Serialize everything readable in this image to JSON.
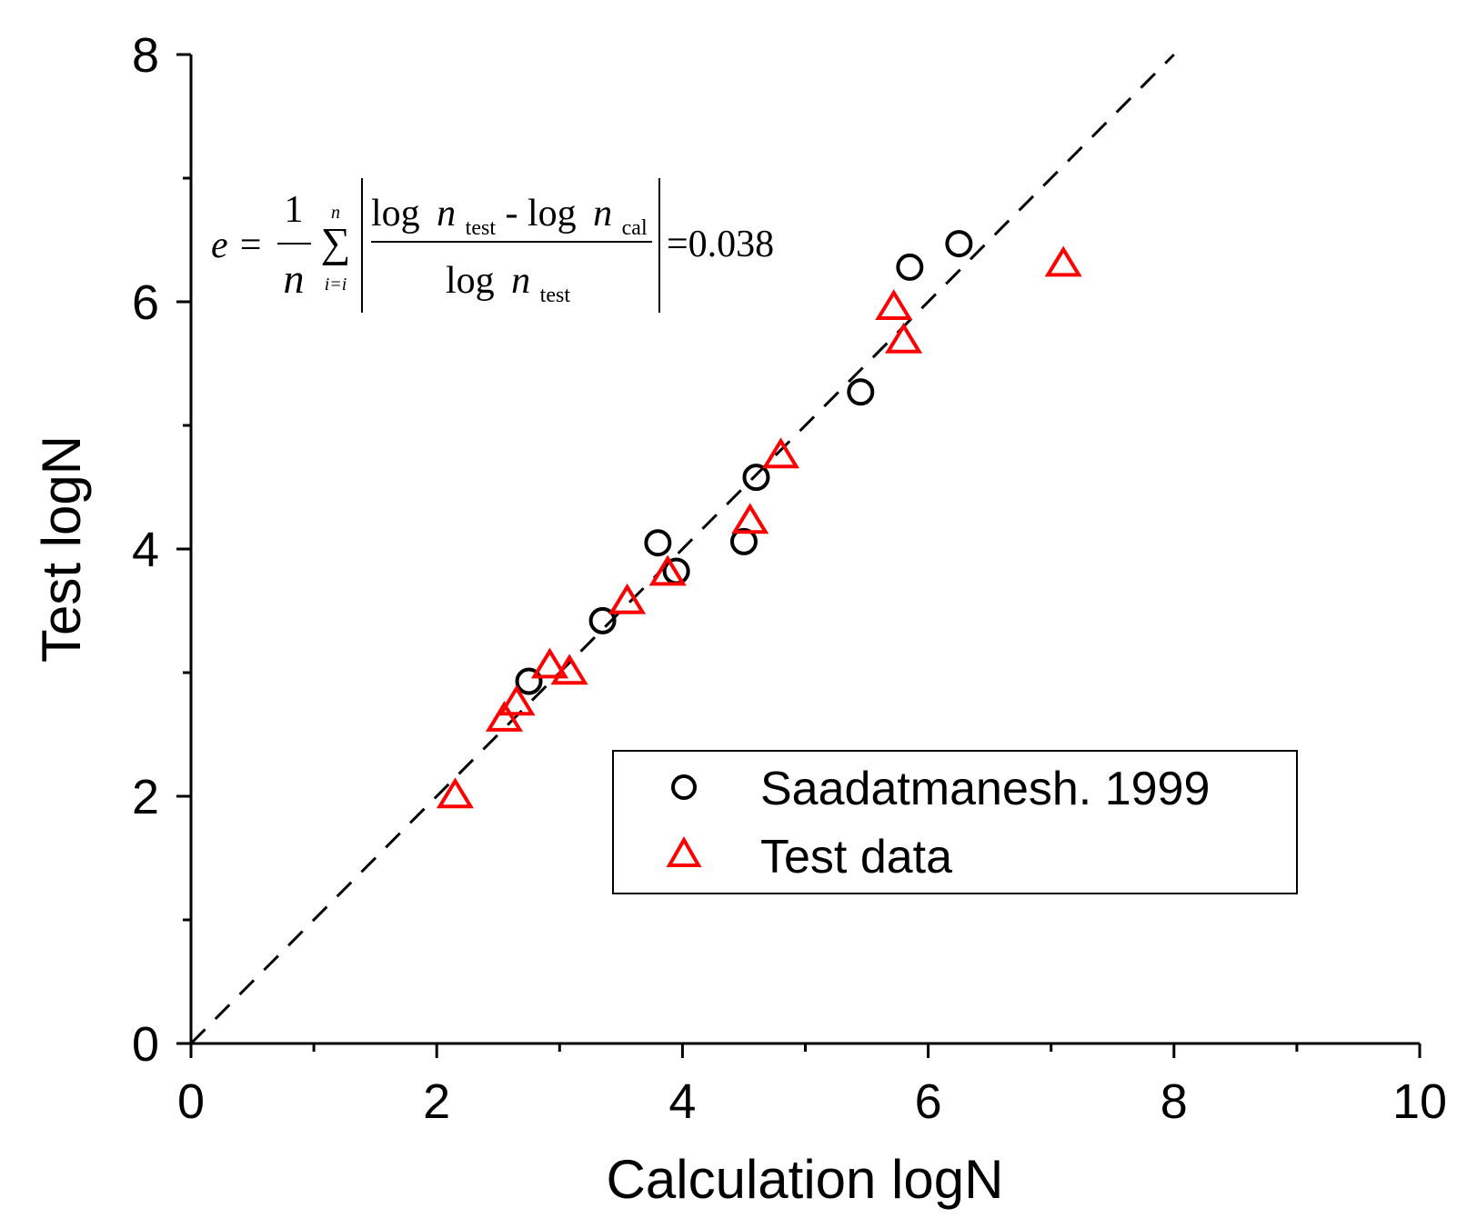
{
  "chart_data": {
    "type": "scatter",
    "title": "",
    "xlabel": "Calculation logN",
    "ylabel": "Test logN",
    "xlim": [
      0,
      10
    ],
    "ylim": [
      0,
      8
    ],
    "xticks": [
      "0",
      "2",
      "4",
      "6",
      "8",
      "10"
    ],
    "yticks": [
      "0",
      "2",
      "4",
      "6",
      "8"
    ],
    "reference_line": {
      "style": "dashed",
      "color": "#000000",
      "x": [
        0,
        8
      ],
      "y": [
        0,
        8
      ]
    },
    "series": [
      {
        "name": "Saadatmanesh. 1999",
        "marker": "circle",
        "color": "#000000",
        "points": [
          [
            2.75,
            2.93
          ],
          [
            3.35,
            3.42
          ],
          [
            3.8,
            4.05
          ],
          [
            3.95,
            3.82
          ],
          [
            4.5,
            4.06
          ],
          [
            4.6,
            4.58
          ],
          [
            5.45,
            5.27
          ],
          [
            5.85,
            6.28
          ],
          [
            6.25,
            6.47
          ]
        ]
      },
      {
        "name": "Test data",
        "marker": "triangle",
        "color": "#ff0000",
        "points": [
          [
            2.15,
            2.0
          ],
          [
            2.55,
            2.62
          ],
          [
            2.65,
            2.75
          ],
          [
            2.92,
            3.05
          ],
          [
            3.08,
            3.0
          ],
          [
            3.55,
            3.57
          ],
          [
            3.88,
            3.8
          ],
          [
            4.55,
            4.22
          ],
          [
            4.8,
            4.75
          ],
          [
            5.72,
            5.95
          ],
          [
            5.8,
            5.68
          ],
          [
            7.1,
            6.3
          ]
        ]
      }
    ],
    "legend_position": "bottom-right",
    "annotation": {
      "lhs": "e =",
      "frac_num": "1",
      "frac_den": "n",
      "sum_top": "n",
      "sum_symbol": "∑",
      "sum_bottom": "i=i",
      "num_log1": "log",
      "num_n1": "n",
      "num_sub1": "test",
      "num_minus": " - log",
      "num_n2": "n",
      "num_sub2": "cal",
      "den_log": "log",
      "den_n": "n",
      "den_sub": "test",
      "result": "=0.038"
    }
  }
}
